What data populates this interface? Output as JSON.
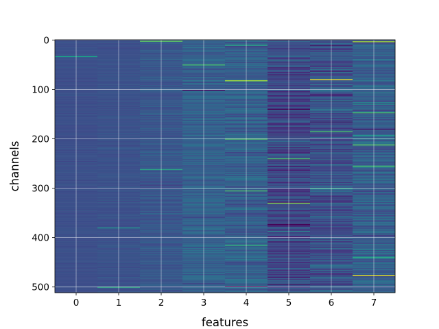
{
  "chart_data": {
    "type": "heatmap",
    "title": "",
    "xlabel": "features",
    "ylabel": "channels",
    "x_ticks": [
      0,
      1,
      2,
      3,
      4,
      5,
      6,
      7
    ],
    "y_ticks": [
      0,
      100,
      200,
      300,
      400,
      500
    ],
    "xlim": [
      -0.5,
      7.5
    ],
    "ylim": [
      511.5,
      -0.5
    ],
    "y_inverted": true,
    "grid": true,
    "colormap": "viridis",
    "n_channels": 512,
    "n_features": 8,
    "value_range": [
      0,
      1
    ],
    "column_base_levels": [
      0.24,
      0.25,
      0.27,
      0.31,
      0.3,
      0.21,
      0.25,
      0.29
    ],
    "column_spread": [
      0.02,
      0.03,
      0.05,
      0.08,
      0.11,
      0.14,
      0.13,
      0.12
    ],
    "highlights": [
      {
        "feature": 0,
        "channel": 33,
        "value": 0.55
      },
      {
        "feature": 1,
        "channel": 380,
        "value": 0.5
      },
      {
        "feature": 1,
        "channel": 500,
        "value": 0.62
      },
      {
        "feature": 2,
        "channel": 2,
        "value": 0.75
      },
      {
        "feature": 2,
        "channel": 262,
        "value": 0.6
      },
      {
        "feature": 3,
        "channel": 50,
        "value": 0.7
      },
      {
        "feature": 3,
        "channel": 102,
        "value": 0.05
      },
      {
        "feature": 4,
        "channel": 10,
        "value": 0.6
      },
      {
        "feature": 4,
        "channel": 82,
        "value": 0.85
      },
      {
        "feature": 4,
        "channel": 200,
        "value": 0.75
      },
      {
        "feature": 4,
        "channel": 305,
        "value": 0.7
      },
      {
        "feature": 4,
        "channel": 415,
        "value": 0.65
      },
      {
        "feature": 4,
        "channel": 498,
        "value": 0.02
      },
      {
        "feature": 5,
        "channel": 140,
        "value": 0.0
      },
      {
        "feature": 5,
        "channel": 240,
        "value": 0.7
      },
      {
        "feature": 5,
        "channel": 330,
        "value": 0.8
      },
      {
        "feature": 5,
        "channel": 373,
        "value": 0.0
      },
      {
        "feature": 6,
        "channel": 80,
        "value": 0.98
      },
      {
        "feature": 6,
        "channel": 185,
        "value": 0.7
      },
      {
        "feature": 6,
        "channel": 300,
        "value": 0.6
      },
      {
        "feature": 7,
        "channel": 3,
        "value": 0.85
      },
      {
        "feature": 7,
        "channel": 147,
        "value": 0.7
      },
      {
        "feature": 7,
        "channel": 212,
        "value": 0.75
      },
      {
        "feature": 7,
        "channel": 255,
        "value": 0.7
      },
      {
        "feature": 7,
        "channel": 440,
        "value": 0.6
      },
      {
        "feature": 7,
        "channel": 476,
        "value": 0.95
      }
    ]
  }
}
